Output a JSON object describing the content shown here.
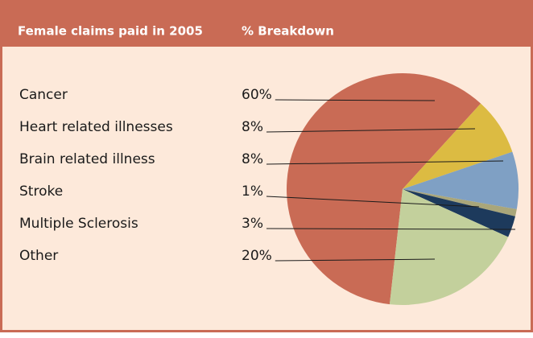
{
  "chart_data": {
    "type": "pie",
    "title": "Female claims paid in 2005",
    "subtitle": "% Breakdown",
    "categories": [
      "Cancer",
      "Heart related illnesses",
      "Brain related illness",
      "Stroke",
      "Multiple Sclerosis",
      "Other"
    ],
    "values": [
      60,
      8,
      8,
      1,
      3,
      20
    ],
    "value_labels": [
      "60%",
      "8%",
      "8%",
      "1%",
      "3%",
      "20%"
    ],
    "colors": [
      "#c96b55",
      "#dcbb42",
      "#7fa0c4",
      "#a9a67a",
      "#1d3a5c",
      "#c3d09c"
    ]
  }
}
